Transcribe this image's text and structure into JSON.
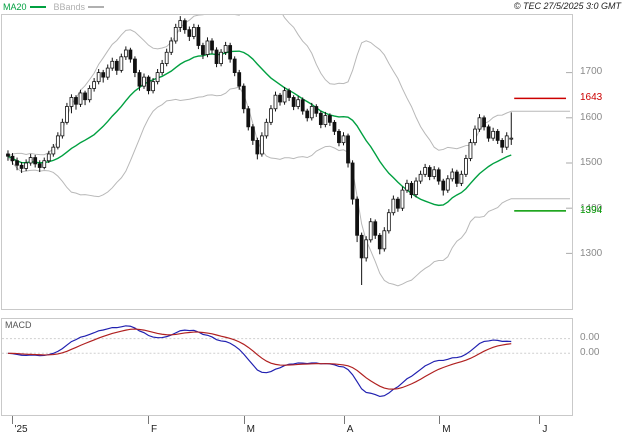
{
  "header": {
    "legend": [
      {
        "label": "MA20",
        "color": "#00a040"
      },
      {
        "label": "BBands",
        "color": "#b0b0b0"
      }
    ],
    "copyright": "© TEC 27/5/2025 3:0 GMT"
  },
  "chart_data": {
    "type": "candlestick",
    "price_panel": {
      "y_ticks": [
        1700,
        1600,
        1500,
        1400,
        1300
      ],
      "levels": [
        {
          "value": 1643,
          "color": "#cc0000"
        },
        {
          "value": 1394,
          "color": "#009900"
        }
      ],
      "indicators": [
        {
          "name": "MA20",
          "period": 20,
          "color": "#00a040"
        },
        {
          "name": "BBands",
          "period": 20,
          "stddev": 2,
          "color": "#b8b8b8"
        }
      ],
      "candle_color": "#111111",
      "candles": [
        [
          1520,
          1528,
          1505,
          1515
        ],
        [
          1515,
          1522,
          1496,
          1505
        ],
        [
          1505,
          1512,
          1484,
          1495
        ],
        [
          1495,
          1502,
          1478,
          1488
        ],
        [
          1488,
          1508,
          1482,
          1500
        ],
        [
          1500,
          1520,
          1494,
          1512
        ],
        [
          1512,
          1518,
          1490,
          1498
        ],
        [
          1498,
          1506,
          1480,
          1490
        ],
        [
          1490,
          1512,
          1486,
          1505
        ],
        [
          1505,
          1527,
          1500,
          1520
        ],
        [
          1520,
          1542,
          1514,
          1535
        ],
        [
          1535,
          1568,
          1530,
          1560
        ],
        [
          1560,
          1598,
          1554,
          1590
        ],
        [
          1590,
          1633,
          1585,
          1625
        ],
        [
          1625,
          1652,
          1610,
          1645
        ],
        [
          1645,
          1650,
          1618,
          1630
        ],
        [
          1630,
          1662,
          1624,
          1655
        ],
        [
          1655,
          1660,
          1628,
          1640
        ],
        [
          1640,
          1672,
          1634,
          1665
        ],
        [
          1665,
          1688,
          1658,
          1680
        ],
        [
          1680,
          1708,
          1674,
          1700
        ],
        [
          1700,
          1706,
          1678,
          1690
        ],
        [
          1690,
          1718,
          1684,
          1710
        ],
        [
          1710,
          1733,
          1704,
          1725
        ],
        [
          1725,
          1730,
          1695,
          1705
        ],
        [
          1705,
          1742,
          1700,
          1735
        ],
        [
          1735,
          1758,
          1728,
          1750
        ],
        [
          1750,
          1755,
          1722,
          1730
        ],
        [
          1730,
          1736,
          1690,
          1700
        ],
        [
          1700,
          1706,
          1660,
          1670
        ],
        [
          1670,
          1698,
          1664,
          1690
        ],
        [
          1690,
          1694,
          1652,
          1660
        ],
        [
          1660,
          1688,
          1654,
          1680
        ],
        [
          1680,
          1708,
          1674,
          1700
        ],
        [
          1700,
          1728,
          1694,
          1720
        ],
        [
          1720,
          1753,
          1714,
          1745
        ],
        [
          1745,
          1778,
          1739,
          1770
        ],
        [
          1770,
          1808,
          1764,
          1800
        ],
        [
          1800,
          1825,
          1790,
          1815
        ],
        [
          1815,
          1820,
          1786,
          1795
        ],
        [
          1795,
          1802,
          1770,
          1780
        ],
        [
          1780,
          1808,
          1774,
          1800
        ],
        [
          1800,
          1806,
          1752,
          1760
        ],
        [
          1760,
          1766,
          1730,
          1740
        ],
        [
          1740,
          1778,
          1734,
          1770
        ],
        [
          1770,
          1776,
          1742,
          1750
        ],
        [
          1750,
          1756,
          1712,
          1720
        ],
        [
          1720,
          1752,
          1714,
          1745
        ],
        [
          1745,
          1768,
          1739,
          1760
        ],
        [
          1760,
          1766,
          1722,
          1730
        ],
        [
          1730,
          1736,
          1692,
          1700
        ],
        [
          1700,
          1706,
          1662,
          1670
        ],
        [
          1670,
          1676,
          1610,
          1620
        ],
        [
          1620,
          1626,
          1572,
          1580
        ],
        [
          1580,
          1586,
          1540,
          1550
        ],
        [
          1550,
          1556,
          1508,
          1520
        ],
        [
          1520,
          1568,
          1514,
          1560
        ],
        [
          1560,
          1598,
          1554,
          1590
        ],
        [
          1590,
          1628,
          1584,
          1620
        ],
        [
          1620,
          1658,
          1614,
          1650
        ],
        [
          1650,
          1655,
          1627,
          1635
        ],
        [
          1635,
          1668,
          1629,
          1660
        ],
        [
          1660,
          1665,
          1637,
          1645
        ],
        [
          1645,
          1650,
          1617,
          1625
        ],
        [
          1625,
          1648,
          1619,
          1640
        ],
        [
          1640,
          1645,
          1607,
          1615
        ],
        [
          1615,
          1620,
          1592,
          1600
        ],
        [
          1600,
          1633,
          1594,
          1625
        ],
        [
          1625,
          1630,
          1602,
          1610
        ],
        [
          1610,
          1615,
          1577,
          1585
        ],
        [
          1585,
          1613,
          1579,
          1605
        ],
        [
          1605,
          1610,
          1582,
          1590
        ],
        [
          1590,
          1595,
          1562,
          1570
        ],
        [
          1570,
          1575,
          1537,
          1545
        ],
        [
          1545,
          1568,
          1539,
          1560
        ],
        [
          1560,
          1565,
          1490,
          1500
        ],
        [
          1500,
          1506,
          1408,
          1420
        ],
        [
          1420,
          1426,
          1325,
          1340
        ],
        [
          1340,
          1346,
          1230,
          1290
        ],
        [
          1290,
          1338,
          1282,
          1330
        ],
        [
          1330,
          1378,
          1324,
          1370
        ],
        [
          1370,
          1375,
          1332,
          1340
        ],
        [
          1340,
          1345,
          1298,
          1310
        ],
        [
          1310,
          1358,
          1304,
          1350
        ],
        [
          1350,
          1398,
          1344,
          1390
        ],
        [
          1390,
          1428,
          1384,
          1420
        ],
        [
          1420,
          1425,
          1392,
          1400
        ],
        [
          1400,
          1448,
          1394,
          1440
        ],
        [
          1440,
          1463,
          1434,
          1455
        ],
        [
          1455,
          1460,
          1422,
          1430
        ],
        [
          1430,
          1468,
          1424,
          1460
        ],
        [
          1460,
          1483,
          1454,
          1475
        ],
        [
          1475,
          1498,
          1469,
          1490
        ],
        [
          1490,
          1495,
          1462,
          1470
        ],
        [
          1470,
          1493,
          1464,
          1485
        ],
        [
          1485,
          1490,
          1452,
          1460
        ],
        [
          1460,
          1465,
          1428,
          1440
        ],
        [
          1440,
          1473,
          1434,
          1465
        ],
        [
          1465,
          1488,
          1459,
          1480
        ],
        [
          1480,
          1485,
          1447,
          1455
        ],
        [
          1455,
          1483,
          1449,
          1475
        ],
        [
          1475,
          1518,
          1469,
          1510
        ],
        [
          1510,
          1553,
          1504,
          1545
        ],
        [
          1545,
          1583,
          1539,
          1575
        ],
        [
          1575,
          1608,
          1569,
          1600
        ],
        [
          1600,
          1605,
          1572,
          1580
        ],
        [
          1580,
          1585,
          1547,
          1555
        ],
        [
          1555,
          1578,
          1549,
          1570
        ],
        [
          1570,
          1575,
          1542,
          1550
        ],
        [
          1550,
          1555,
          1522,
          1535
        ],
        [
          1535,
          1568,
          1529,
          1560
        ],
        [
          1555,
          1612,
          1540,
          1555
        ]
      ]
    },
    "macd_panel": {
      "label": "MACD",
      "fast": 12,
      "slow": 26,
      "signal": 9,
      "colors": {
        "macd": "#2020b0",
        "signal": "#b02020"
      },
      "axis_labels": [
        "0.00",
        "0.00"
      ]
    },
    "x_axis": {
      "labels": [
        "'25",
        "F",
        "M",
        "A",
        "M",
        "J"
      ],
      "tick_indices": [
        1,
        31,
        52,
        74,
        95,
        117
      ]
    }
  }
}
